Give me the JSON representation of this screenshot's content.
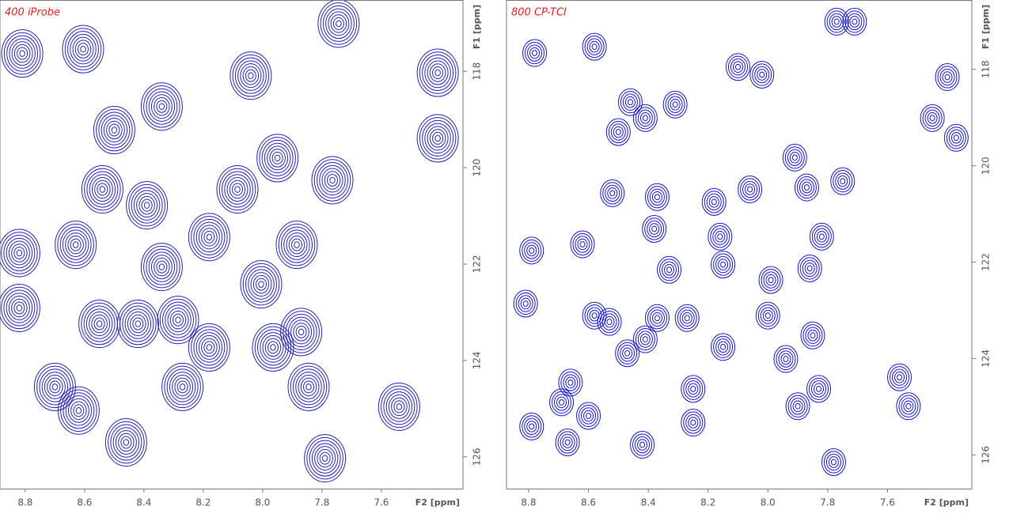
{
  "chart_data": [
    {
      "type": "contour",
      "title": "400 iProbe",
      "xlabel": "F2 [ppm]",
      "ylabel": "F1 [ppm]",
      "color": "#2323b4",
      "xlim": [
        8.885,
        7.325
      ],
      "ylim": [
        126.66,
        116.52
      ],
      "xticks": [
        8.8,
        8.6,
        8.4,
        8.2,
        {
          "value": 8,
          "label": "8.0"
        },
        7.8,
        7.6
      ],
      "yticks": [
        118,
        120,
        122,
        124,
        126
      ],
      "x": [
        8.81,
        8.605,
        7.744,
        8.04,
        7.41,
        7.41,
        8.5,
        8.34,
        8.54,
        8.39,
        8.085,
        7.95,
        7.765,
        8.63,
        8.18,
        8.34,
        7.885,
        8.005,
        8.82,
        8.82,
        8.55,
        8.42,
        8.285,
        8.18,
        7.965,
        7.87,
        8.27,
        7.845,
        8.7,
        8.62,
        7.54,
        8.46,
        7.79
      ],
      "y": [
        117.63,
        117.54,
        117.01,
        118.09,
        118.03,
        119.39,
        119.22,
        118.73,
        120.45,
        120.78,
        120.45,
        119.8,
        120.26,
        121.6,
        121.44,
        122.06,
        121.6,
        122.42,
        121.77,
        122.91,
        123.24,
        123.24,
        123.16,
        123.73,
        123.73,
        123.41,
        124.55,
        124.55,
        124.55,
        125.04,
        124.96,
        125.7,
        126.03
      ]
    },
    {
      "type": "contour",
      "title": "800 CP-TCI",
      "xlabel": "F2 [ppm]",
      "ylabel": "F1 [ppm]",
      "color": "#1414c8",
      "xlim": [
        8.874,
        7.318
      ],
      "ylim": [
        126.7,
        116.56
      ],
      "xticks": [
        8.8,
        8.6,
        8.4,
        8.2,
        {
          "value": 8,
          "label": "8.0"
        },
        7.8,
        7.6
      ],
      "yticks": [
        118,
        120,
        122,
        124,
        126
      ],
      "x": [
        8.78,
        8.58,
        7.71,
        7.77,
        8.02,
        8.1,
        7.4,
        7.37,
        8.46,
        8.41,
        8.5,
        8.31,
        7.45,
        7.91,
        7.75,
        8.06,
        7.87,
        8.52,
        8.37,
        8.18,
        8.38,
        8.16,
        8.62,
        7.82,
        8.79,
        8.33,
        7.86,
        7.99,
        8.15,
        8.81,
        8.53,
        8.37,
        8.27,
        8.0,
        8.58,
        8.41,
        8.47,
        8.15,
        7.85,
        7.94,
        8.66,
        8.69,
        8.6,
        8.25,
        7.83,
        7.56,
        7.53,
        7.9,
        8.79,
        8.67,
        8.42,
        8.25,
        7.78
      ],
      "y": [
        117.66,
        117.53,
        117.01,
        117.01,
        118.11,
        117.95,
        118.16,
        119.42,
        118.68,
        119.01,
        119.3,
        118.73,
        119.01,
        119.83,
        120.32,
        120.49,
        120.45,
        120.57,
        120.65,
        120.75,
        121.31,
        121.47,
        121.63,
        121.47,
        121.76,
        122.16,
        122.13,
        122.37,
        122.05,
        122.86,
        123.24,
        123.16,
        123.16,
        123.11,
        123.11,
        123.6,
        123.89,
        123.76,
        123.52,
        124.01,
        124.5,
        124.91,
        125.19,
        124.63,
        124.63,
        124.39,
        124.99,
        124.99,
        125.41,
        125.74,
        125.79,
        125.33,
        126.15
      ]
    }
  ]
}
